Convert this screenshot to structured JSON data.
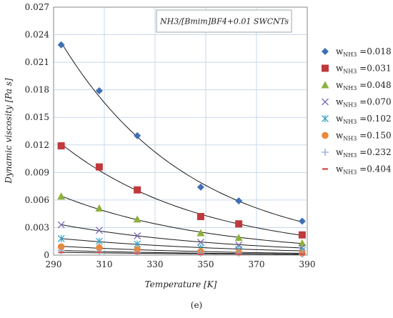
{
  "caption": "(e)",
  "chart_data": {
    "type": "scatter",
    "annotation": "NH3/[Bmim]BF4+0.01 SWCNTs",
    "xlabel": "Temperature [K]",
    "ylabel": "Dynamic viscosity [Pa s]",
    "xlim": [
      290,
      390
    ],
    "ylim": [
      0,
      0.027
    ],
    "xticks": [
      "290",
      "310",
      "330",
      "350",
      "370",
      "390"
    ],
    "yticks": [
      "0",
      "0.003",
      "0.006",
      "0.009",
      "0.012",
      "0.015",
      "0.018",
      "0.021",
      "0.024",
      "0.027"
    ],
    "grid": true,
    "legend_position": "right",
    "series": [
      {
        "name_prefix": "w",
        "name_sub": "NH3",
        "name_suffix": " =0.018",
        "marker": "diamond",
        "color": "#3f6fb5",
        "x": [
          293,
          308,
          323,
          348,
          363,
          388
        ],
        "y": [
          0.0229,
          0.0179,
          0.013,
          0.0074,
          0.0059,
          0.0037
        ]
      },
      {
        "name_prefix": "w",
        "name_sub": "NH3",
        "name_suffix": " =0.031",
        "marker": "square",
        "color": "#c0393b",
        "x": [
          293,
          308,
          323,
          348,
          363,
          388
        ],
        "y": [
          0.0119,
          0.0096,
          0.0071,
          0.0042,
          0.0034,
          0.0022
        ]
      },
      {
        "name_prefix": "w",
        "name_sub": "NH3",
        "name_suffix": " =0.048",
        "marker": "triangle",
        "color": "#8db13c",
        "x": [
          293,
          308,
          323,
          348,
          363,
          388
        ],
        "y": [
          0.0064,
          0.0051,
          0.0039,
          0.0024,
          0.0019,
          0.0013
        ]
      },
      {
        "name_prefix": "w",
        "name_sub": "NH3",
        "name_suffix": " =0.070",
        "marker": "x",
        "color": "#7b68b0",
        "x": [
          293,
          308,
          323,
          348,
          363,
          388
        ],
        "y": [
          0.0033,
          0.0027,
          0.0021,
          0.0014,
          0.0011,
          0.0008
        ]
      },
      {
        "name_prefix": "w",
        "name_sub": "NH3",
        "name_suffix": " =0.102",
        "marker": "star",
        "color": "#3aa7c9",
        "x": [
          293,
          308,
          323,
          348,
          363,
          388
        ],
        "y": [
          0.0018,
          0.0015,
          0.0012,
          0.0008,
          0.0006,
          0.0005
        ]
      },
      {
        "name_prefix": "w",
        "name_sub": "NH3",
        "name_suffix": " =0.150",
        "marker": "circle",
        "color": "#e8883a",
        "x": [
          293,
          308,
          323,
          348,
          363,
          388
        ],
        "y": [
          0.0009,
          0.0008,
          0.0006,
          0.0004,
          0.0003,
          0.0002
        ]
      },
      {
        "name_prefix": "w",
        "name_sub": "NH3",
        "name_suffix": " =0.232",
        "marker": "plus",
        "color": "#8aa8d8",
        "x": [
          293,
          308,
          323,
          348,
          363,
          388
        ],
        "y": [
          0.0005,
          0.0004,
          0.0003,
          0.0002,
          0.0002,
          0.0001
        ]
      },
      {
        "name_prefix": "w",
        "name_sub": "NH3",
        "name_suffix": " =0.404",
        "marker": "dash",
        "color": "#d4504f",
        "x": [
          293,
          308,
          323,
          348,
          363,
          388
        ],
        "y": [
          0.0003,
          0.0003,
          0.0002,
          0.0001,
          0.0001,
          0.0001
        ]
      }
    ]
  }
}
